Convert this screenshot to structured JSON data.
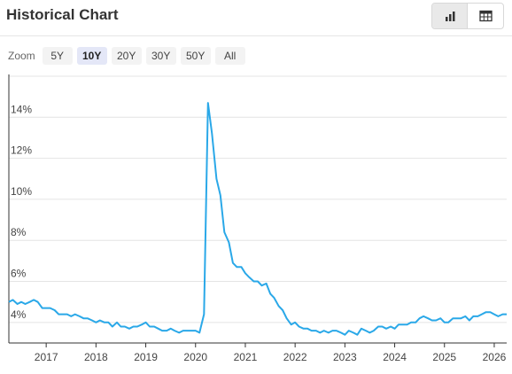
{
  "header": {
    "title": "Historical Chart",
    "icons": {
      "chart_view": "bar-chart-icon",
      "table_view": "table-icon"
    }
  },
  "zoom": {
    "label": "Zoom",
    "options": [
      "5Y",
      "10Y",
      "20Y",
      "30Y",
      "50Y",
      "All"
    ],
    "active": "10Y"
  },
  "chart_data": {
    "type": "line",
    "title": "",
    "xlabel": "",
    "ylabel": "",
    "line_color": "#2aa8e8",
    "grid": true,
    "ylim": [
      3,
      16
    ],
    "xlim": [
      2016.25,
      2026.25
    ],
    "y_ticks": [
      4,
      6,
      8,
      10,
      12,
      14
    ],
    "y_tick_labels": [
      "4%",
      "6%",
      "8%",
      "10%",
      "12%",
      "14%"
    ],
    "x_ticks": [
      2017,
      2018,
      2019,
      2020,
      2021,
      2022,
      2023,
      2024,
      2025,
      2026
    ],
    "x_tick_labels": [
      "2017",
      "2018",
      "2019",
      "2020",
      "2021",
      "2022",
      "2023",
      "2024",
      "2025",
      "2026"
    ],
    "series": [
      {
        "x": [
          2016.25,
          2016.33,
          2016.42,
          2016.5,
          2016.58,
          2016.67,
          2016.75,
          2016.83,
          2016.92,
          2017.0,
          2017.08,
          2017.17,
          2017.25,
          2017.33,
          2017.42,
          2017.5,
          2017.58,
          2017.67,
          2017.75,
          2017.83,
          2017.92,
          2018.0,
          2018.08,
          2018.17,
          2018.25,
          2018.33,
          2018.42,
          2018.5,
          2018.58,
          2018.67,
          2018.75,
          2018.83,
          2018.92,
          2019.0,
          2019.08,
          2019.17,
          2019.25,
          2019.33,
          2019.42,
          2019.5,
          2019.58,
          2019.67,
          2019.75,
          2019.83,
          2019.92,
          2020.0,
          2020.08,
          2020.17,
          2020.25,
          2020.33,
          2020.42,
          2020.5,
          2020.58,
          2020.67,
          2020.75,
          2020.83,
          2020.92,
          2021.0,
          2021.08,
          2021.17,
          2021.25,
          2021.33,
          2021.42,
          2021.5,
          2021.58,
          2021.67,
          2021.75,
          2021.83,
          2021.92,
          2022.0,
          2022.08,
          2022.17,
          2022.25,
          2022.33,
          2022.42,
          2022.5,
          2022.58,
          2022.67,
          2022.75,
          2022.83,
          2022.92,
          2023.0,
          2023.08,
          2023.17,
          2023.25,
          2023.33,
          2023.42,
          2023.5,
          2023.58,
          2023.67,
          2023.75,
          2023.83,
          2023.92,
          2024.0,
          2024.08,
          2024.17,
          2024.25,
          2024.33,
          2024.42,
          2024.5,
          2024.58,
          2024.67,
          2024.75,
          2024.83,
          2024.92,
          2025.0,
          2025.08,
          2025.17,
          2025.25,
          2025.33,
          2025.42,
          2025.5,
          2025.58,
          2025.67,
          2025.75,
          2025.83,
          2025.92,
          2026.0,
          2026.08,
          2026.17,
          2026.25
        ],
        "values": [
          5.0,
          5.1,
          4.9,
          5.0,
          4.9,
          5.0,
          5.1,
          5.0,
          4.7,
          4.7,
          4.7,
          4.6,
          4.4,
          4.4,
          4.4,
          4.3,
          4.4,
          4.3,
          4.2,
          4.2,
          4.1,
          4.0,
          4.1,
          4.0,
          4.0,
          3.8,
          4.0,
          3.8,
          3.8,
          3.7,
          3.8,
          3.8,
          3.9,
          4.0,
          3.8,
          3.8,
          3.7,
          3.6,
          3.6,
          3.7,
          3.6,
          3.5,
          3.6,
          3.6,
          3.6,
          3.6,
          3.5,
          4.4,
          14.7,
          13.2,
          11.0,
          10.2,
          8.4,
          7.9,
          6.9,
          6.7,
          6.7,
          6.4,
          6.2,
          6.0,
          6.0,
          5.8,
          5.9,
          5.4,
          5.2,
          4.8,
          4.6,
          4.2,
          3.9,
          4.0,
          3.8,
          3.7,
          3.7,
          3.6,
          3.6,
          3.5,
          3.6,
          3.5,
          3.6,
          3.6,
          3.5,
          3.4,
          3.6,
          3.5,
          3.4,
          3.7,
          3.6,
          3.5,
          3.6,
          3.8,
          3.8,
          3.7,
          3.8,
          3.7,
          3.9,
          3.9,
          3.9,
          4.0,
          4.0,
          4.2,
          4.3,
          4.2,
          4.1,
          4.1,
          4.2,
          4.0,
          4.0,
          4.2,
          4.2,
          4.2,
          4.3,
          4.1,
          4.3,
          4.3,
          4.4,
          4.5,
          4.5,
          4.4,
          4.3,
          4.4,
          4.4
        ]
      }
    ]
  }
}
